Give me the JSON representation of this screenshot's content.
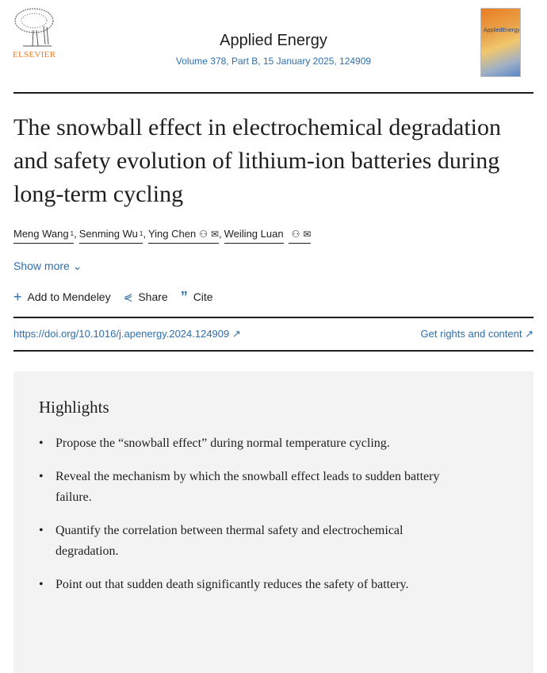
{
  "header": {
    "publisher": "ELSEVIER",
    "journal": "Applied Energy",
    "volume": "Volume 378, Part B, 15 January 2025, 124909",
    "cover_text": "AppliedEnergy"
  },
  "article": {
    "title": "The snowball effect in electrochemical degradation and safety evolution of lithium-ion batteries during long-term cycling",
    "authors": [
      {
        "name": "Meng Wang",
        "sup": "1"
      },
      {
        "name": "Senming Wu",
        "sup": "1"
      },
      {
        "name": "Ying Chen",
        "icons": [
          "person-icon",
          "mail-icon"
        ]
      },
      {
        "name": "Weiling Luan",
        "icons": [
          "person-icon",
          "mail-icon"
        ]
      }
    ],
    "show_more": "Show more",
    "actions": {
      "mendeley": "Add to Mendeley",
      "share": "Share",
      "cite": "Cite"
    },
    "doi": "https://doi.org/10.1016/j.apenergy.2024.124909",
    "rights": "Get rights and content"
  },
  "highlights": {
    "heading": "Highlights",
    "items": [
      "Propose the “snowball effect” during normal temperature cycling.",
      "Reveal the mechanism by which the snowball effect leads to sudden battery failure.",
      "Quantify the correlation between thermal safety and electrochemical degradation.",
      "Point out that sudden death significantly reduces the safety of battery."
    ]
  },
  "colors": {
    "link": "#2e6fae",
    "publisher": "#f47a20"
  }
}
